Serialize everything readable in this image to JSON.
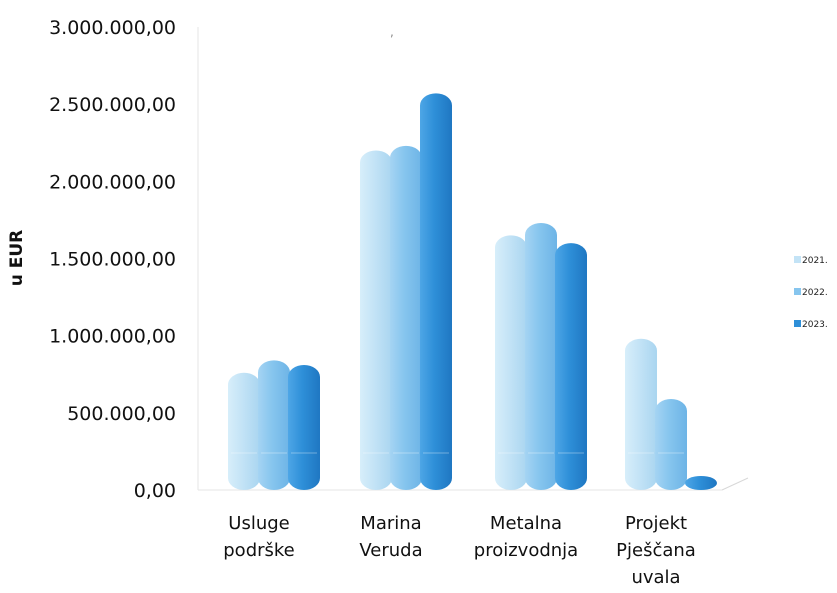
{
  "chart_data": {
    "type": "bar",
    "ylabel": "u EUR",
    "ylim": [
      0,
      3000000
    ],
    "y_ticks": [
      "0,00",
      "500.000,00",
      "1.000.000,00",
      "1.500.000,00",
      "2.000.000,00",
      "2.500.000,00",
      "3.000.000,00"
    ],
    "y_tick_values": [
      0,
      500000,
      1000000,
      1500000,
      2000000,
      2500000,
      3000000
    ],
    "categories": [
      [
        "Usluge",
        "podrške"
      ],
      [
        "Marina",
        "Veruda"
      ],
      [
        "Metalna",
        "proizvodnja"
      ],
      [
        "Projekt",
        "Pješčana",
        "uvala"
      ]
    ],
    "series": [
      {
        "name": "2021.",
        "color": "#c3e3f6",
        "values": [
          760000,
          2200000,
          1650000,
          980000
        ]
      },
      {
        "name": "2022.",
        "color": "#86c5ee",
        "values": [
          840000,
          2230000,
          1730000,
          590000
        ]
      },
      {
        "name": "2023.",
        "color": "#2e8fd8",
        "values": [
          810000,
          2570000,
          1600000,
          40000
        ]
      }
    ],
    "legend_position": "right",
    "grid": false
  }
}
